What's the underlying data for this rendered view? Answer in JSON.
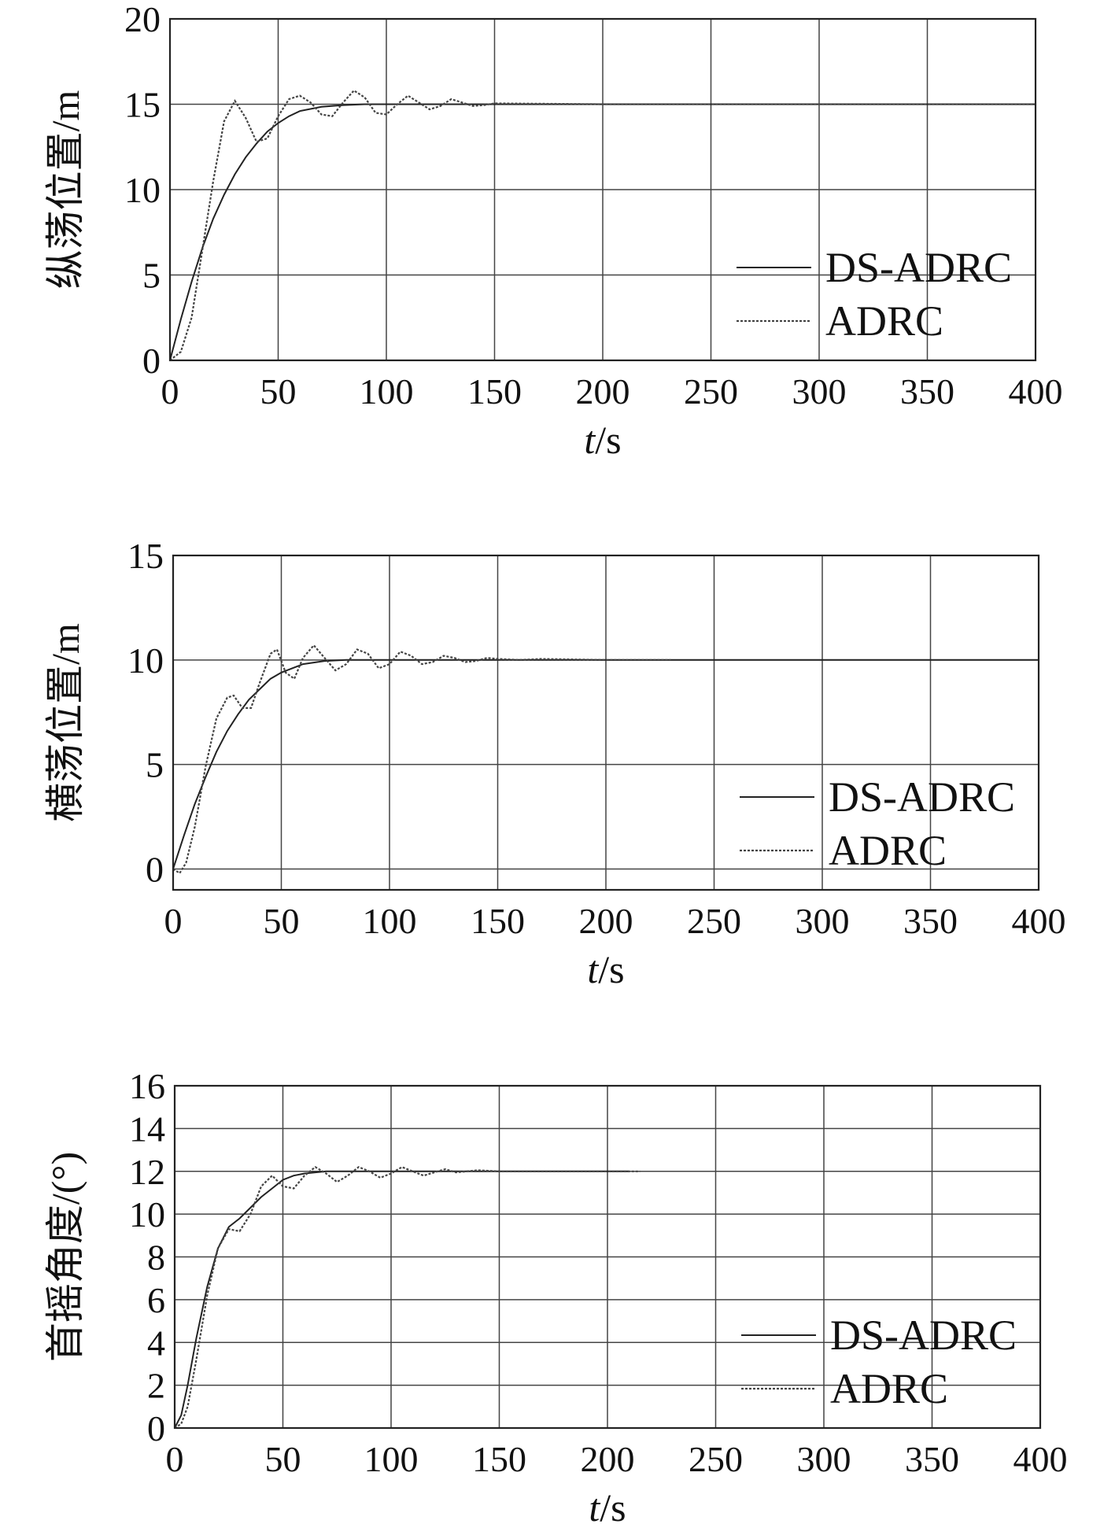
{
  "chart_data": [
    {
      "type": "line",
      "xlabel": "t/s",
      "ylabel": "纵荡位置/m",
      "xlim": [
        0,
        400
      ],
      "ylim": [
        0,
        20
      ],
      "xticks": [
        "0",
        "50",
        "100",
        "150",
        "200",
        "250",
        "300",
        "350",
        "400"
      ],
      "yticks": [
        "0",
        "5",
        "10",
        "15",
        "20"
      ],
      "grid": true,
      "legend": "bottom-right",
      "series": [
        {
          "name": "DS-ADRC",
          "x": [
            0,
            5,
            10,
            15,
            20,
            25,
            30,
            35,
            40,
            45,
            50,
            55,
            60,
            70,
            80,
            90,
            100,
            400
          ],
          "y": [
            0,
            2.4,
            4.6,
            6.6,
            8.3,
            9.7,
            10.9,
            11.9,
            12.7,
            13.4,
            13.9,
            14.3,
            14.6,
            14.85,
            14.95,
            15,
            15,
            15
          ]
        },
        {
          "name": "ADRC",
          "x": [
            0,
            5,
            10,
            15,
            20,
            25,
            30,
            35,
            40,
            45,
            50,
            55,
            60,
            65,
            70,
            75,
            80,
            85,
            90,
            95,
            100,
            105,
            110,
            115,
            120,
            125,
            130,
            135,
            140,
            145,
            150,
            200,
            400
          ],
          "y": [
            0,
            0.5,
            2.5,
            6.5,
            10.5,
            14,
            15.2,
            14.2,
            12.8,
            13,
            14.3,
            15.3,
            15.5,
            15.1,
            14.4,
            14.3,
            15.1,
            15.8,
            15.4,
            14.5,
            14.4,
            15,
            15.5,
            15.1,
            14.7,
            14.9,
            15.3,
            15.1,
            14.9,
            14.95,
            15.05,
            15,
            15
          ]
        }
      ]
    },
    {
      "type": "line",
      "xlabel": "t/s",
      "ylabel": "横荡位置/m",
      "xlim": [
        0,
        400
      ],
      "ylim": [
        -1,
        15
      ],
      "xticks": [
        "0",
        "50",
        "100",
        "150",
        "200",
        "250",
        "300",
        "350",
        "400"
      ],
      "yticks": [
        "0",
        "5",
        "10",
        "15"
      ],
      "grid": true,
      "legend": "bottom-right",
      "series": [
        {
          "name": "DS-ADRC",
          "x": [
            0,
            5,
            10,
            15,
            20,
            25,
            30,
            35,
            40,
            45,
            50,
            55,
            60,
            70,
            80,
            90,
            100,
            400
          ],
          "y": [
            0,
            1.6,
            3.1,
            4.4,
            5.6,
            6.6,
            7.4,
            8.1,
            8.6,
            9.1,
            9.4,
            9.6,
            9.8,
            9.95,
            10,
            10,
            10,
            10
          ]
        },
        {
          "name": "ADRC",
          "x": [
            0,
            3,
            6,
            10,
            15,
            20,
            25,
            28,
            32,
            36,
            40,
            45,
            48,
            52,
            56,
            60,
            65,
            70,
            75,
            80,
            85,
            90,
            95,
            100,
            105,
            110,
            115,
            120,
            125,
            130,
            135,
            140,
            145,
            150,
            160,
            170,
            200,
            230
          ],
          "y": [
            0,
            -0.2,
            0.3,
            2,
            4.9,
            7.2,
            8.2,
            8.3,
            7.7,
            7.7,
            8.9,
            10.3,
            10.5,
            9.4,
            9.1,
            10.1,
            10.7,
            10.1,
            9.5,
            9.8,
            10.5,
            10.3,
            9.6,
            9.8,
            10.4,
            10.2,
            9.8,
            9.9,
            10.2,
            10.1,
            9.9,
            9.95,
            10.1,
            10.05,
            10,
            10.05,
            10,
            10
          ]
        }
      ]
    },
    {
      "type": "line",
      "xlabel": "t/s",
      "ylabel": "首摇角度/(°)",
      "xlim": [
        0,
        400
      ],
      "ylim": [
        0,
        16
      ],
      "xticks": [
        "0",
        "50",
        "100",
        "150",
        "200",
        "250",
        "300",
        "350",
        "400"
      ],
      "yticks": [
        "0",
        "2",
        "4",
        "6",
        "8",
        "10",
        "12",
        "14",
        "16"
      ],
      "grid": true,
      "legend": "bottom-right",
      "series": [
        {
          "name": "DS-ADRC",
          "x": [
            0,
            3,
            6,
            10,
            15,
            20,
            25,
            30,
            35,
            40,
            45,
            50,
            55,
            60,
            70,
            80,
            90,
            100,
            210
          ],
          "y": [
            0,
            0.6,
            2,
            4.2,
            6.6,
            8.4,
            9.4,
            9.8,
            10.3,
            10.8,
            11.2,
            11.6,
            11.8,
            11.9,
            12,
            12,
            12,
            12,
            12
          ]
        },
        {
          "name": "ADRC",
          "x": [
            0,
            3,
            6,
            10,
            15,
            20,
            25,
            30,
            35,
            40,
            45,
            50,
            55,
            60,
            65,
            70,
            75,
            80,
            85,
            90,
            95,
            100,
            105,
            110,
            115,
            120,
            125,
            130,
            140,
            150,
            200,
            215
          ],
          "y": [
            0,
            0.2,
            1,
            3.2,
            6.2,
            8.4,
            9.3,
            9.2,
            10,
            11.3,
            11.8,
            11.3,
            11.2,
            11.8,
            12.2,
            11.9,
            11.5,
            11.8,
            12.2,
            12,
            11.7,
            11.9,
            12.2,
            12,
            11.8,
            11.95,
            12.1,
            11.95,
            12.05,
            12,
            12,
            12
          ]
        }
      ]
    }
  ]
}
